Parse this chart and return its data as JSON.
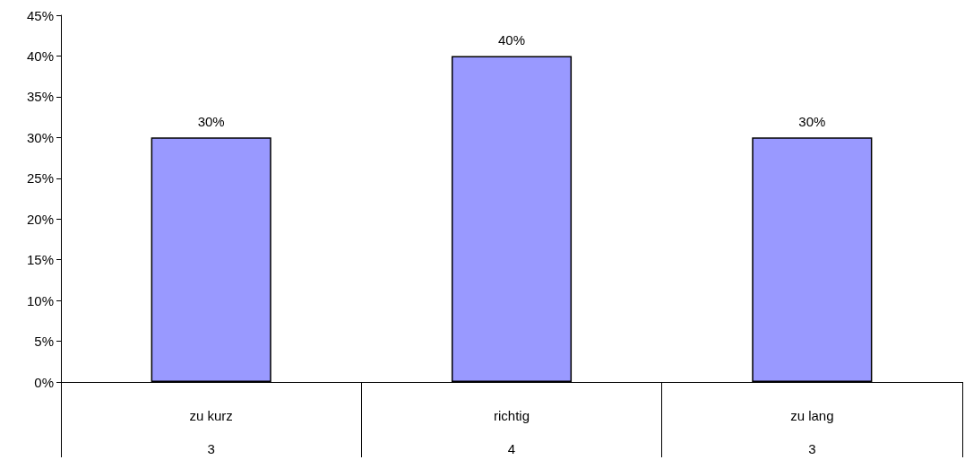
{
  "chart_data": {
    "type": "bar",
    "categories": [
      "zu kurz",
      "richtig",
      "zu lang"
    ],
    "values": [
      30,
      40,
      30
    ],
    "value_labels": [
      "30%",
      "40%",
      "30%"
    ],
    "color": "#9999ff",
    "ylim": [
      0,
      45
    ],
    "yticks": [
      {
        "value": 0,
        "label": "0%"
      },
      {
        "value": 5,
        "label": "5%"
      },
      {
        "value": 10,
        "label": "10%"
      },
      {
        "value": 15,
        "label": "15%"
      },
      {
        "value": 20,
        "label": "20%"
      },
      {
        "value": 25,
        "label": "25%"
      },
      {
        "value": 30,
        "label": "30%"
      },
      {
        "value": 35,
        "label": "35%"
      },
      {
        "value": 40,
        "label": "40%"
      },
      {
        "value": 45,
        "label": "45%"
      }
    ],
    "annotations": [
      "3",
      "4",
      "3"
    ]
  }
}
